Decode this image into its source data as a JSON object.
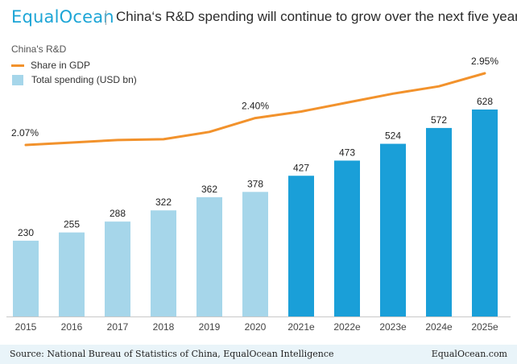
{
  "header": {
    "logo_text": "EqualOcean",
    "title": "China‘s R&D spending will continue to grow over the next five years"
  },
  "footer": {
    "source": "Source: National Bureau of Statistics of China, EqualOcean Intelligence",
    "site": "EqualOcean.com"
  },
  "colors": {
    "bar_actual": "#a6d6ea",
    "bar_estimate": "#1a9fd8",
    "line": "#f2922c",
    "brand": "#1ca5d6"
  },
  "chart_data": {
    "type": "bar",
    "subtitle": "China's R&D",
    "categories": [
      "2015",
      "2016",
      "2017",
      "2018",
      "2019",
      "2020",
      "2021e",
      "2022e",
      "2023e",
      "2024e",
      "2025e"
    ],
    "estimate_from": "2021e",
    "series": [
      {
        "name": "Total spending (USD bn)",
        "type": "bar",
        "values": [
          230,
          255,
          288,
          322,
          362,
          378,
          427,
          473,
          524,
          572,
          628
        ],
        "labels": [
          "230",
          "255",
          "288",
          "322",
          "362",
          "378",
          "427",
          "473",
          "524",
          "572",
          "628"
        ]
      },
      {
        "name": "Share in GDP",
        "type": "line",
        "values": [
          2.07,
          2.1,
          2.13,
          2.14,
          2.23,
          2.4,
          2.48,
          2.59,
          2.7,
          2.79,
          2.95
        ],
        "labels": [
          {
            "index": 0,
            "text": "2.07%"
          },
          {
            "index": 5,
            "text": "2.40%"
          },
          {
            "index": 10,
            "text": "2.95%"
          }
        ]
      }
    ],
    "legend_position": "top-left",
    "grid": false
  }
}
